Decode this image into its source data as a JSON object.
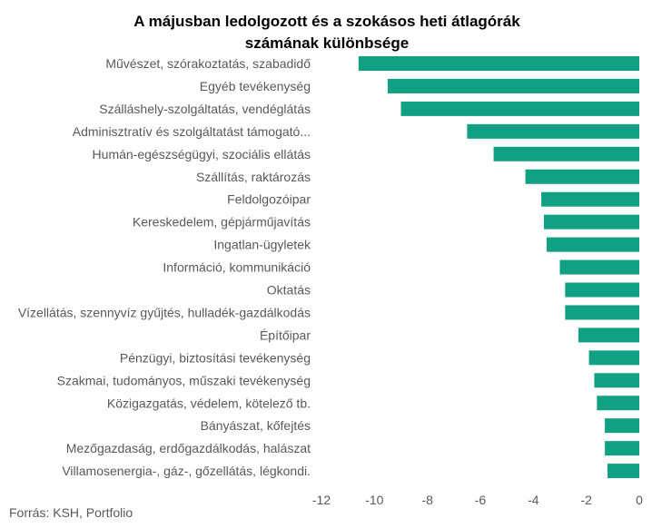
{
  "chart_data": {
    "type": "bar",
    "orientation": "horizontal",
    "title": "A  májusban ledolgozott és a szokásos heti átlagórák számának különbsége",
    "title_lines": [
      "A  májusban ledolgozott és a szokásos heti átlagórák",
      "számának különbsége"
    ],
    "categories": [
      "Művészet, szórakoztatás, szabadidő",
      "Egyéb tevékenység",
      "Szálláshely-szolgáltatás, vendéglátás",
      "Adminisztratív és szolgáltatást támogató...",
      "Humán-egészségügyi, szociális ellátás",
      "Szállítás, raktározás",
      "Feldolgozóipar",
      "Kereskedelem, gépjárműjavítás",
      "Ingatlan-ügyletek",
      "Információ, kommunikáció",
      "Oktatás",
      "Vízellátás, szennyvíz gyűjtés, hulladék-gazdálkodás",
      "Építőipar",
      "Pénzügyi, biztosítási tevékenység",
      "Szakmai, tudományos, műszaki tevékenység",
      "Közigazgatás, védelem, kötelező tb.",
      "Bányászat, kőfejtés",
      "Mezőgazdaság, erdőgazdálkodás, halászat",
      "Villamosenergia-, gáz-, gőzellátás, légkondi."
    ],
    "values": [
      -10.6,
      -9.5,
      -9.0,
      -6.5,
      -5.5,
      -4.3,
      -3.7,
      -3.6,
      -3.5,
      -3.0,
      -2.8,
      -2.8,
      -2.3,
      -1.9,
      -1.7,
      -1.6,
      -1.3,
      -1.3,
      -1.2
    ],
    "xlim": [
      -12,
      0
    ],
    "xticks": [
      -12,
      -10,
      -8,
      -6,
      -4,
      -2,
      0
    ],
    "xlabel": "",
    "ylabel": "",
    "bar_color": "#11a084",
    "grid": false,
    "legend": "none"
  },
  "source": "Forrás: KSH, Portfolio"
}
